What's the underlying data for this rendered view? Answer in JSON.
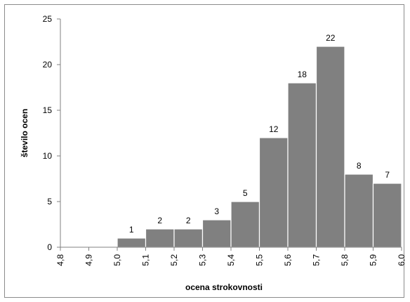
{
  "chart_data": {
    "type": "bar",
    "title": "",
    "xlabel": "ocena strokovnosti",
    "ylabel": "število ocen",
    "x_ticks": [
      "4,8",
      "4,9",
      "5,0",
      "5,1",
      "5,2",
      "5,3",
      "5,4",
      "5,5",
      "5,6",
      "5,7",
      "5,8",
      "5,9",
      "6,0"
    ],
    "categories": [
      "4,8",
      "4,9",
      "5,0",
      "5,1",
      "5,2",
      "5,3",
      "5,4",
      "5,5",
      "5,6",
      "5,7",
      "5,8",
      "5,9"
    ],
    "values": [
      0,
      0,
      1,
      2,
      2,
      3,
      5,
      12,
      18,
      22,
      8,
      7
    ],
    "data_labels": [
      "",
      "",
      "1",
      "2",
      "2",
      "3",
      "5",
      "12",
      "18",
      "22",
      "8",
      "7"
    ],
    "y_ticks": [
      0,
      5,
      10,
      15,
      20,
      25
    ],
    "ylim": [
      0,
      25
    ],
    "grid": false,
    "legend": "none",
    "bar_color": "#808080"
  }
}
